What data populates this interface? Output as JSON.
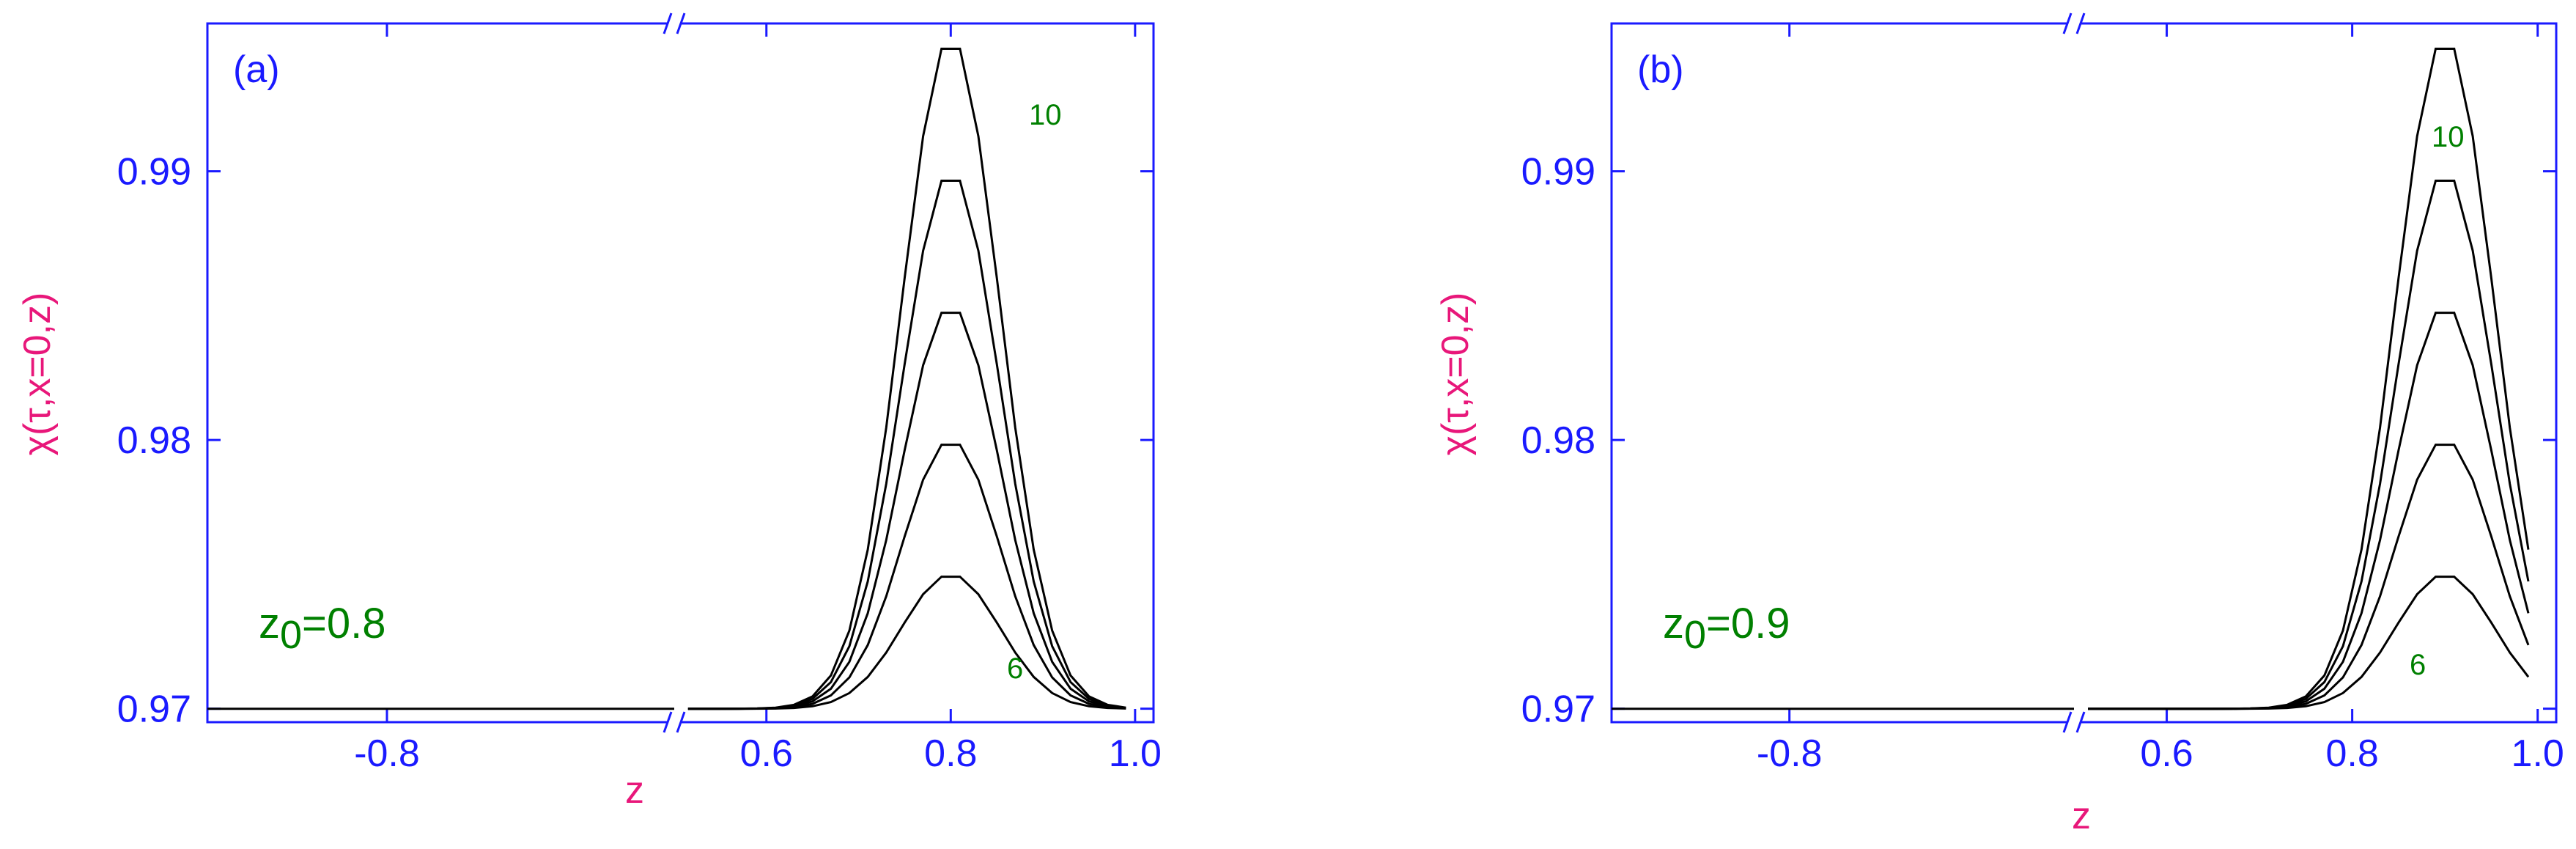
{
  "chart_data": [
    {
      "type": "line",
      "panel_label": "(a)",
      "xlabel": "z",
      "ylabel": "χ(τ,x=0,z)",
      "y_ticks": [
        "0.97",
        "0.98",
        "0.99"
      ],
      "ylim": [
        0.9695,
        0.9955
      ],
      "x_left_segment": {
        "range": [
          -1.0,
          -0.48
        ],
        "ticks": [
          "-0.8"
        ],
        "tick_values": [
          -0.8
        ]
      },
      "x_right_segment": {
        "range": [
          0.5,
          1.02
        ],
        "ticks": [
          "0.6",
          "0.8",
          "1.0"
        ],
        "tick_values": [
          0.6,
          0.8,
          1.0
        ]
      },
      "axis_break": true,
      "annotation_z0": {
        "prefix": "z",
        "sub": "0",
        "suffix": "=0.8"
      },
      "annotation_top": "10",
      "annotation_bottom": "6",
      "baseline": 0.97,
      "z0": 0.8,
      "sigma": 0.075,
      "amplitudes": [
        0.005,
        0.01,
        0.015,
        0.02,
        0.025
      ],
      "series": [
        {
          "x": [
            -1.0,
            -0.48
          ],
          "y": [
            0.97,
            0.97
          ]
        }
      ]
    },
    {
      "type": "line",
      "panel_label": "(b)",
      "xlabel": "z",
      "ylabel": "χ(τ,x=0,z)",
      "y_ticks": [
        "0.97",
        "0.98",
        "0.99"
      ],
      "ylim": [
        0.9695,
        0.9955
      ],
      "x_left_segment": {
        "range": [
          -1.0,
          -0.48
        ],
        "ticks": [
          "-0.8"
        ],
        "tick_values": [
          -0.8
        ]
      },
      "x_right_segment": {
        "range": [
          0.5,
          1.02
        ],
        "ticks": [
          "0.6",
          "0.8",
          "1.0"
        ],
        "tick_values": [
          0.6,
          0.8,
          1.0
        ]
      },
      "axis_break": true,
      "annotation_z0": {
        "prefix": "z",
        "sub": "0",
        "suffix": "=0.9"
      },
      "annotation_top": "10",
      "annotation_bottom": "6",
      "baseline": 0.97,
      "z0": 0.9,
      "sigma": 0.075,
      "amplitudes": [
        0.005,
        0.01,
        0.015,
        0.02,
        0.025
      ],
      "series": [
        {
          "x": [
            -1.0,
            -0.48
          ],
          "y": [
            0.97,
            0.97
          ]
        }
      ]
    }
  ]
}
